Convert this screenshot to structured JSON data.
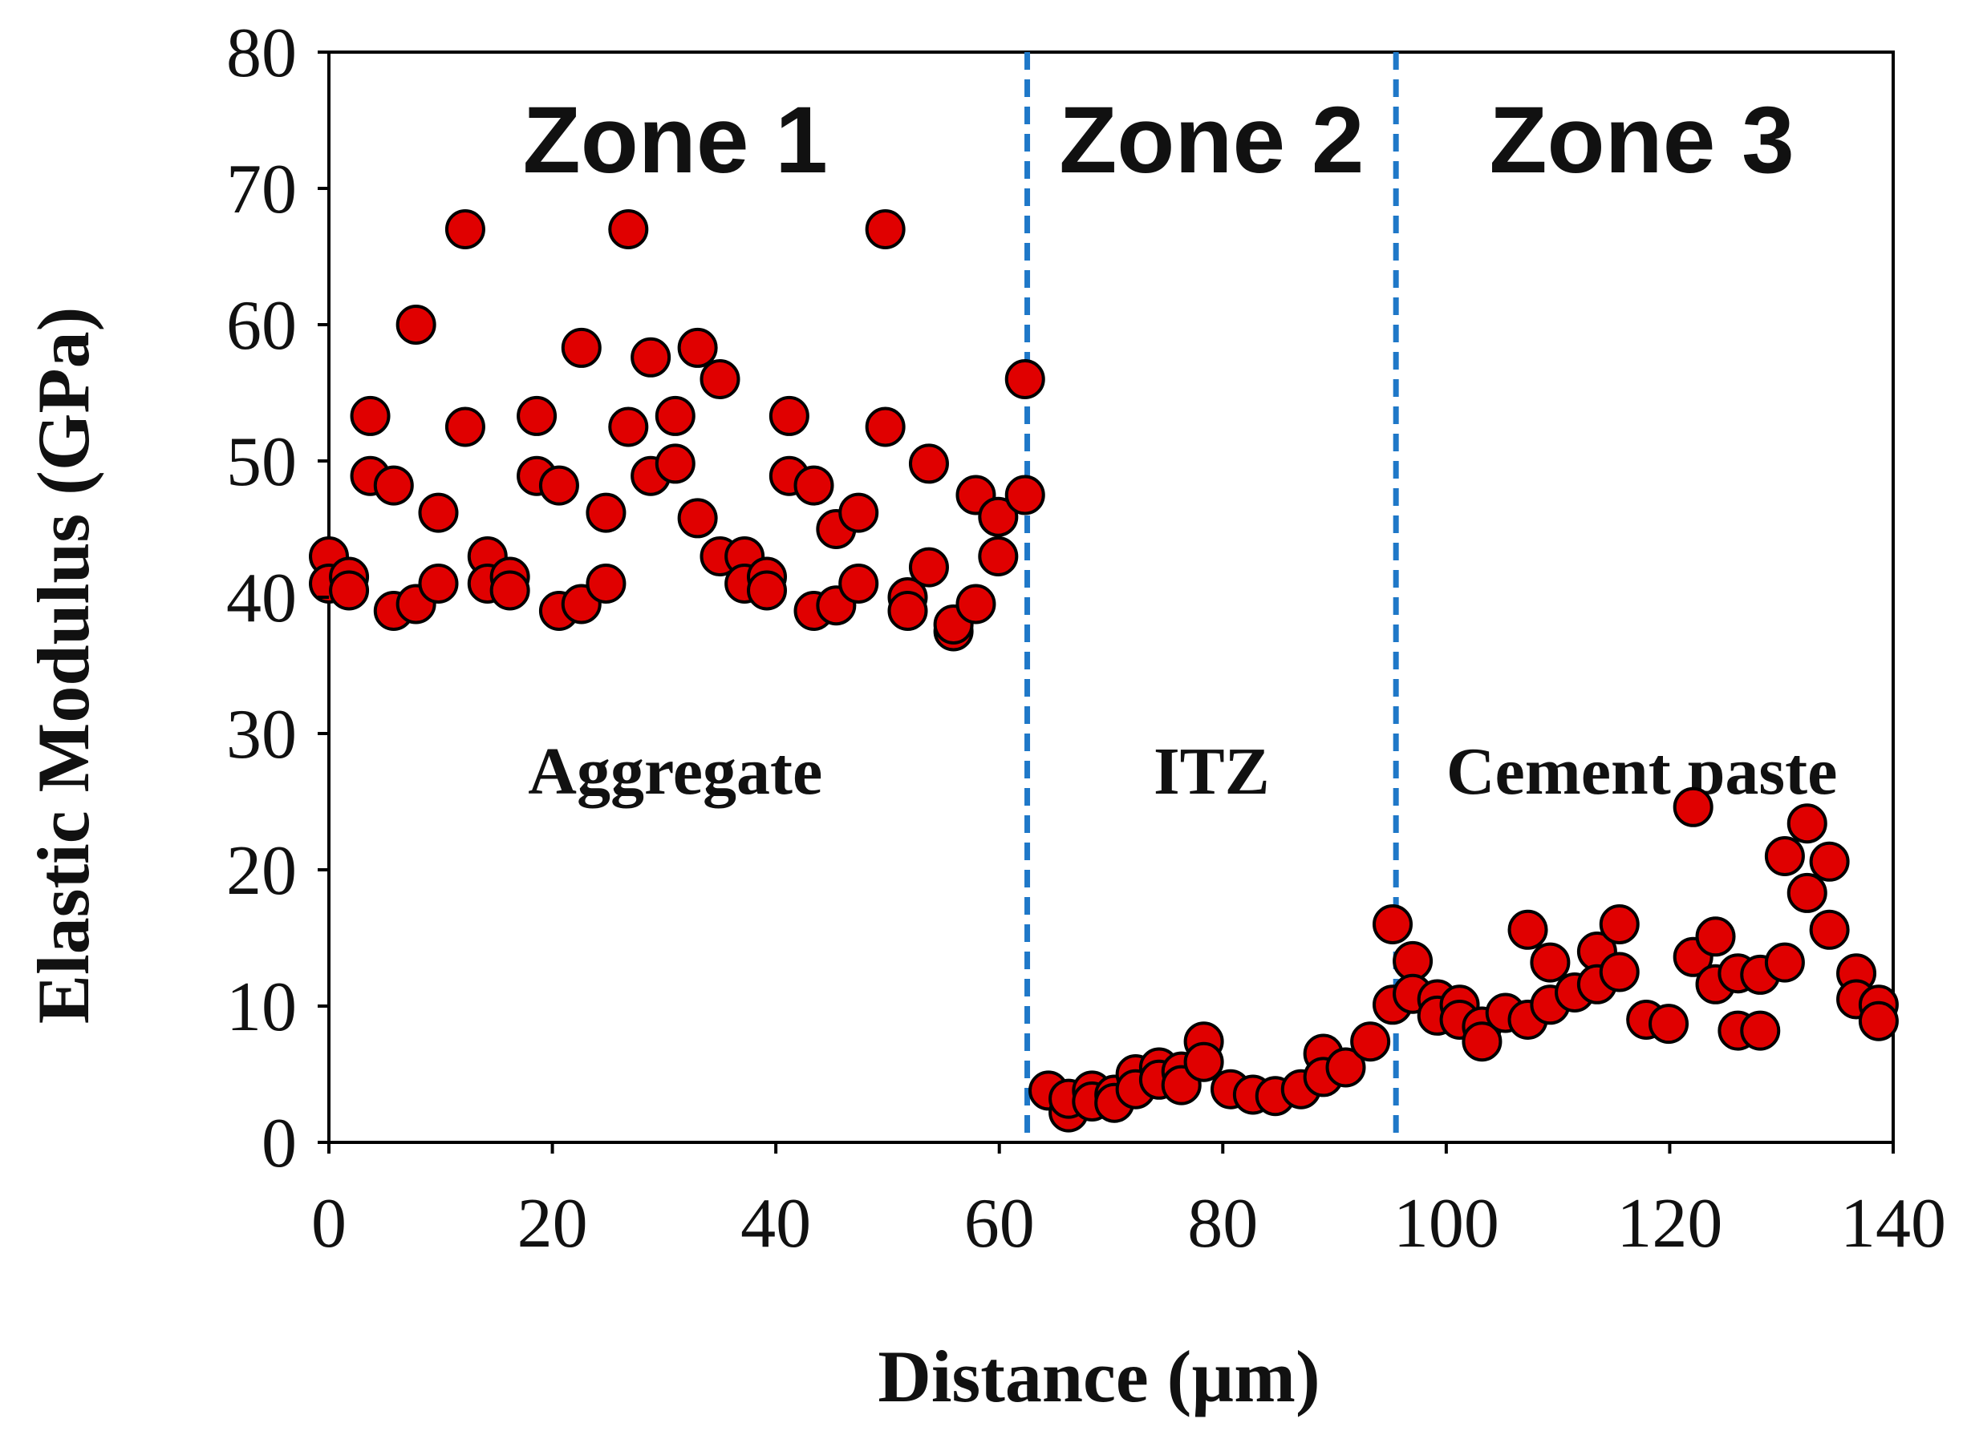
{
  "chart_data": {
    "type": "scatter",
    "title": "",
    "xlabel": "Distance (µm)",
    "ylabel": "Elastic Modulus (GPa)",
    "xlim": [
      0,
      140
    ],
    "ylim": [
      0,
      80
    ],
    "xticks": [
      0,
      20,
      40,
      60,
      80,
      100,
      120,
      140
    ],
    "yticks": [
      0,
      10,
      20,
      30,
      40,
      50,
      60,
      70,
      80
    ],
    "grid": false,
    "marker_color": "#e00000",
    "marker_edge_color": "#000000",
    "divider_color": "#1f78c8",
    "dividers": [
      62.5,
      95.5
    ],
    "zones": [
      {
        "label": "Zone 1",
        "region": "Aggregate",
        "x_center": 31
      },
      {
        "label": "Zone 2",
        "region": "ITZ",
        "x_center": 79
      },
      {
        "label": "Zone 3",
        "region": "Cement paste",
        "x_center": 117.5
      }
    ],
    "series": [
      {
        "name": "Elastic modulus",
        "points": [
          [
            0,
            43
          ],
          [
            0,
            41
          ],
          [
            1.8,
            41.5
          ],
          [
            1.8,
            40.5
          ],
          [
            3.7,
            53.3
          ],
          [
            3.7,
            48.9
          ],
          [
            5.8,
            48.2
          ],
          [
            5.8,
            39
          ],
          [
            7.8,
            60
          ],
          [
            7.8,
            39.5
          ],
          [
            9.8,
            46.2
          ],
          [
            9.8,
            41
          ],
          [
            12.2,
            67
          ],
          [
            12.2,
            52.5
          ],
          [
            14.2,
            43
          ],
          [
            14.2,
            41
          ],
          [
            16.2,
            41.5
          ],
          [
            16.2,
            40.5
          ],
          [
            18.6,
            53.3
          ],
          [
            18.6,
            48.9
          ],
          [
            20.6,
            48.2
          ],
          [
            20.6,
            39
          ],
          [
            22.6,
            58.3
          ],
          [
            22.6,
            39.5
          ],
          [
            24.8,
            46.2
          ],
          [
            24.8,
            41
          ],
          [
            26.8,
            67
          ],
          [
            26.8,
            52.5
          ],
          [
            28.8,
            57.6
          ],
          [
            28.8,
            48.9
          ],
          [
            31,
            53.3
          ],
          [
            31,
            49.8
          ],
          [
            33,
            58.3
          ],
          [
            33,
            45.8
          ],
          [
            35,
            56
          ],
          [
            35,
            43
          ],
          [
            37.2,
            43
          ],
          [
            37.2,
            41
          ],
          [
            39.2,
            41.5
          ],
          [
            39.2,
            40.5
          ],
          [
            41.2,
            53.3
          ],
          [
            41.2,
            48.9
          ],
          [
            43.4,
            48.2
          ],
          [
            43.4,
            39
          ],
          [
            45.4,
            45
          ],
          [
            45.4,
            39.4
          ],
          [
            47.4,
            46.2
          ],
          [
            47.4,
            41
          ],
          [
            49.8,
            67
          ],
          [
            49.8,
            52.5
          ],
          [
            51.8,
            40
          ],
          [
            51.8,
            39
          ],
          [
            53.7,
            49.8
          ],
          [
            53.7,
            42.2
          ],
          [
            55.9,
            37.5
          ],
          [
            55.9,
            38
          ],
          [
            57.9,
            47.5
          ],
          [
            57.9,
            39.5
          ],
          [
            59.9,
            45.9
          ],
          [
            59.9,
            43
          ],
          [
            62.3,
            56
          ],
          [
            62.3,
            47.5
          ],
          [
            64.4,
            3.8
          ],
          [
            66.2,
            2.2
          ],
          [
            66.2,
            3.2
          ],
          [
            68.3,
            3.8
          ],
          [
            68.3,
            3
          ],
          [
            70.3,
            3.5
          ],
          [
            70.3,
            2.9
          ],
          [
            72.2,
            5
          ],
          [
            72.2,
            3.9
          ],
          [
            74.3,
            5.5
          ],
          [
            74.3,
            4.6
          ],
          [
            76.3,
            5.2
          ],
          [
            76.3,
            4.2
          ],
          [
            78.3,
            7.4
          ],
          [
            78.3,
            5.9
          ],
          [
            80.7,
            3.9
          ],
          [
            82.7,
            3.5
          ],
          [
            84.7,
            3.4
          ],
          [
            87,
            3.9
          ],
          [
            89,
            6.5
          ],
          [
            89,
            4.8
          ],
          [
            91,
            5.5
          ],
          [
            93.2,
            7.4
          ],
          [
            95.2,
            16
          ],
          [
            95.2,
            10.1
          ],
          [
            97,
            13.3
          ],
          [
            97,
            10.9
          ],
          [
            99.2,
            10.5
          ],
          [
            99.2,
            9.3
          ],
          [
            101.2,
            10.1
          ],
          [
            101.2,
            9
          ],
          [
            103.2,
            8.5
          ],
          [
            103.2,
            7.4
          ],
          [
            105.3,
            9.5
          ],
          [
            107.3,
            15.6
          ],
          [
            107.3,
            9
          ],
          [
            109.3,
            13.2
          ],
          [
            109.3,
            10.1
          ],
          [
            111.5,
            11
          ],
          [
            113.5,
            14
          ],
          [
            113.5,
            11.6
          ],
          [
            115.5,
            16
          ],
          [
            115.5,
            12.5
          ],
          [
            117.9,
            9
          ],
          [
            119.9,
            8.7
          ],
          [
            122.1,
            24.6
          ],
          [
            122.1,
            13.6
          ],
          [
            124.1,
            15.1
          ],
          [
            124.1,
            11.6
          ],
          [
            126.1,
            12.4
          ],
          [
            126.1,
            8.2
          ],
          [
            128.1,
            12.3
          ],
          [
            128.1,
            8.2
          ],
          [
            130.3,
            21
          ],
          [
            130.3,
            13.2
          ],
          [
            132.3,
            23.4
          ],
          [
            132.3,
            18.3
          ],
          [
            134.3,
            20.6
          ],
          [
            134.3,
            15.6
          ],
          [
            136.7,
            12.4
          ],
          [
            136.7,
            10.5
          ],
          [
            138.7,
            10.1
          ],
          [
            138.7,
            8.9
          ]
        ]
      }
    ]
  }
}
